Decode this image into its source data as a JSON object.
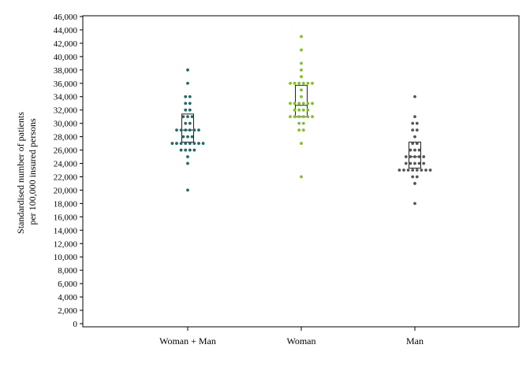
{
  "chart_data": {
    "type": "scatter",
    "subtype": "dot-plot-with-iqr-box",
    "title": "",
    "ylabel_lines": [
      "Standardised number of patients",
      "per 100,000 insured persons"
    ],
    "ylim": [
      0,
      46000
    ],
    "yticks": [
      0,
      2000,
      4000,
      6000,
      8000,
      10000,
      12000,
      14000,
      16000,
      18000,
      20000,
      22000,
      24000,
      26000,
      28000,
      30000,
      32000,
      34000,
      36000,
      38000,
      40000,
      42000,
      44000,
      46000
    ],
    "ytick_labels": [
      "0",
      "2,000",
      "4,000",
      "6,000",
      "8,000",
      "10,000",
      "12,000",
      "14,000",
      "16,000",
      "18,000",
      "20,000",
      "22,000",
      "24,000",
      "26,000",
      "28,000",
      "30,000",
      "32,000",
      "34,000",
      "36,000",
      "38,000",
      "40,000",
      "42,000",
      "44,000",
      "46,000"
    ],
    "grid": false,
    "categories": [
      "Woman + Man",
      "Woman",
      "Man"
    ],
    "series": [
      {
        "category": "Woman + Man",
        "color": "#1f6b6b",
        "box": {
          "q1": 27200,
          "median": 29000,
          "q3": 31400
        },
        "values": [
          38000,
          36000,
          34000,
          34000,
          33000,
          33000,
          32000,
          32000,
          31000,
          31000,
          31000,
          30000,
          30000,
          29000,
          29000,
          29000,
          29000,
          29000,
          29000,
          28000,
          28000,
          28000,
          27000,
          27000,
          27000,
          27000,
          27000,
          27000,
          27000,
          27000,
          26000,
          26000,
          26000,
          26000,
          25000,
          24000,
          20000
        ]
      },
      {
        "category": "Woman",
        "color": "#7dc21e",
        "box": {
          "q1": 31000,
          "median": 32700,
          "q3": 35700
        },
        "values": [
          43000,
          41000,
          39000,
          38000,
          37000,
          36000,
          36000,
          36000,
          36000,
          36000,
          36000,
          35000,
          34000,
          33000,
          33000,
          33000,
          33000,
          33000,
          33000,
          32000,
          32000,
          32000,
          32000,
          31000,
          31000,
          31000,
          31000,
          31000,
          31000,
          30000,
          30000,
          29000,
          29000,
          27000,
          22000
        ]
      },
      {
        "category": "Man",
        "color": "#555555",
        "box": {
          "q1": 23300,
          "median": 25000,
          "q3": 27200
        },
        "values": [
          34000,
          31000,
          30000,
          30000,
          29000,
          29000,
          28000,
          27000,
          27000,
          26000,
          26000,
          26000,
          25000,
          25000,
          25000,
          25000,
          25000,
          24000,
          24000,
          24000,
          24000,
          24000,
          23000,
          23000,
          23000,
          23000,
          23000,
          23000,
          23000,
          23000,
          22000,
          22000,
          21000,
          18000
        ]
      }
    ]
  }
}
